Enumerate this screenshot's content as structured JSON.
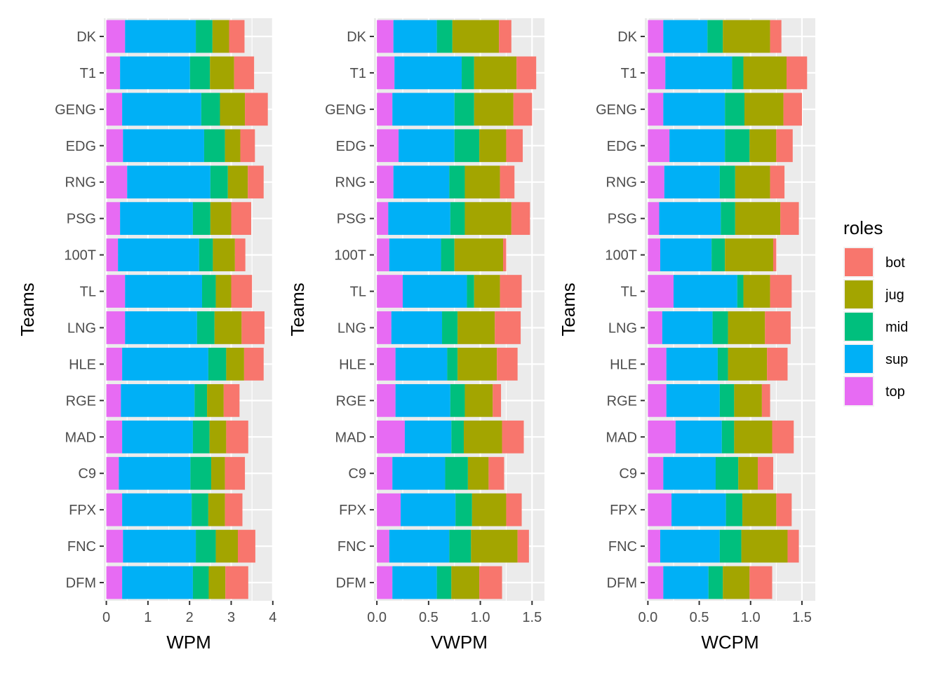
{
  "chart_data": {
    "type": "bar",
    "stacked": true,
    "orientation": "horizontal",
    "categories": [
      "DK",
      "T1",
      "GENG",
      "EDG",
      "RNG",
      "PSG",
      "100T",
      "TL",
      "LNG",
      "HLE",
      "RGE",
      "MAD",
      "C9",
      "FPX",
      "FNC",
      "DFM"
    ],
    "stack_order": [
      "top",
      "sup",
      "mid",
      "jug",
      "bot"
    ],
    "colors": {
      "bot": "#F8766D",
      "jug": "#A3A500",
      "mid": "#00BF7D",
      "sup": "#00B0F6",
      "top": "#E76BF3"
    },
    "legend": {
      "title": "roles",
      "position": "right",
      "items": [
        "bot",
        "jug",
        "mid",
        "sup",
        "top"
      ]
    },
    "grid": true,
    "panels": [
      {
        "xlabel": "WPM",
        "ylabel": "Teams",
        "xlim": [
          -0.06,
          4.02
        ],
        "xticks": [
          0,
          1,
          2,
          3,
          4
        ],
        "tick_labels": [
          "0",
          "1",
          "2",
          "3",
          "4"
        ],
        "series": [
          {
            "name": "top",
            "values": [
              0.45,
              0.33,
              0.38,
              0.4,
              0.5,
              0.33,
              0.28,
              0.45,
              0.45,
              0.38,
              0.35,
              0.38,
              0.3,
              0.38,
              0.4,
              0.38
            ]
          },
          {
            "name": "sup",
            "values": [
              1.7,
              1.68,
              1.9,
              1.95,
              2.0,
              1.75,
              1.95,
              1.85,
              1.73,
              2.07,
              1.77,
              1.7,
              1.72,
              1.67,
              1.75,
              1.7
            ]
          },
          {
            "name": "mid",
            "values": [
              0.4,
              0.48,
              0.45,
              0.5,
              0.42,
              0.42,
              0.33,
              0.33,
              0.42,
              0.43,
              0.3,
              0.4,
              0.5,
              0.4,
              0.48,
              0.38
            ]
          },
          {
            "name": "jug",
            "values": [
              0.4,
              0.58,
              0.6,
              0.37,
              0.48,
              0.5,
              0.53,
              0.37,
              0.65,
              0.43,
              0.4,
              0.4,
              0.33,
              0.4,
              0.53,
              0.4
            ]
          },
          {
            "name": "bot",
            "values": [
              0.37,
              0.48,
              0.55,
              0.35,
              0.38,
              0.48,
              0.25,
              0.5,
              0.55,
              0.47,
              0.38,
              0.53,
              0.48,
              0.42,
              0.42,
              0.55
            ]
          }
        ]
      },
      {
        "xlabel": "VWPM",
        "ylabel": "Teams",
        "xlim": [
          -0.028,
          1.62
        ],
        "xticks": [
          0,
          0.5,
          1,
          1.5
        ],
        "tick_labels": [
          "0.0",
          "0.5",
          "1.0",
          "1.5"
        ],
        "series": [
          {
            "name": "top",
            "values": [
              0.16,
              0.17,
              0.15,
              0.21,
              0.16,
              0.11,
              0.12,
              0.25,
              0.14,
              0.18,
              0.18,
              0.27,
              0.15,
              0.23,
              0.12,
              0.15
            ]
          },
          {
            "name": "sup",
            "values": [
              0.42,
              0.65,
              0.6,
              0.54,
              0.54,
              0.6,
              0.5,
              0.62,
              0.49,
              0.5,
              0.53,
              0.45,
              0.51,
              0.53,
              0.58,
              0.43
            ]
          },
          {
            "name": "mid",
            "values": [
              0.15,
              0.12,
              0.19,
              0.24,
              0.15,
              0.14,
              0.13,
              0.07,
              0.15,
              0.1,
              0.14,
              0.12,
              0.22,
              0.16,
              0.21,
              0.14
            ]
          },
          {
            "name": "jug",
            "values": [
              0.45,
              0.41,
              0.38,
              0.26,
              0.34,
              0.45,
              0.47,
              0.25,
              0.36,
              0.38,
              0.27,
              0.37,
              0.2,
              0.33,
              0.45,
              0.27
            ]
          },
          {
            "name": "bot",
            "values": [
              0.12,
              0.19,
              0.18,
              0.16,
              0.14,
              0.18,
              0.03,
              0.21,
              0.25,
              0.2,
              0.08,
              0.21,
              0.15,
              0.15,
              0.11,
              0.22
            ]
          }
        ]
      },
      {
        "xlabel": "WCPM",
        "ylabel": "Teams",
        "xlim": [
          -0.03,
          1.63
        ],
        "xticks": [
          0,
          0.5,
          1,
          1.5
        ],
        "tick_labels": [
          "0.0",
          "0.5",
          "1.0",
          "1.5"
        ],
        "series": [
          {
            "name": "top",
            "values": [
              0.15,
              0.17,
              0.15,
              0.21,
              0.16,
              0.11,
              0.12,
              0.25,
              0.14,
              0.18,
              0.18,
              0.27,
              0.15,
              0.23,
              0.12,
              0.15
            ]
          },
          {
            "name": "sup",
            "values": [
              0.43,
              0.65,
              0.6,
              0.54,
              0.54,
              0.6,
              0.5,
              0.62,
              0.49,
              0.5,
              0.52,
              0.45,
              0.51,
              0.53,
              0.58,
              0.44
            ]
          },
          {
            "name": "mid",
            "values": [
              0.15,
              0.11,
              0.19,
              0.24,
              0.15,
              0.14,
              0.13,
              0.06,
              0.15,
              0.1,
              0.14,
              0.12,
              0.22,
              0.16,
              0.21,
              0.14
            ]
          },
          {
            "name": "jug",
            "values": [
              0.46,
              0.42,
              0.38,
              0.26,
              0.34,
              0.44,
              0.47,
              0.26,
              0.36,
              0.38,
              0.27,
              0.37,
              0.19,
              0.33,
              0.45,
              0.26
            ]
          },
          {
            "name": "bot",
            "values": [
              0.11,
              0.2,
              0.18,
              0.16,
              0.14,
              0.18,
              0.03,
              0.21,
              0.25,
              0.2,
              0.08,
              0.21,
              0.15,
              0.15,
              0.11,
              0.22
            ]
          }
        ]
      }
    ]
  }
}
